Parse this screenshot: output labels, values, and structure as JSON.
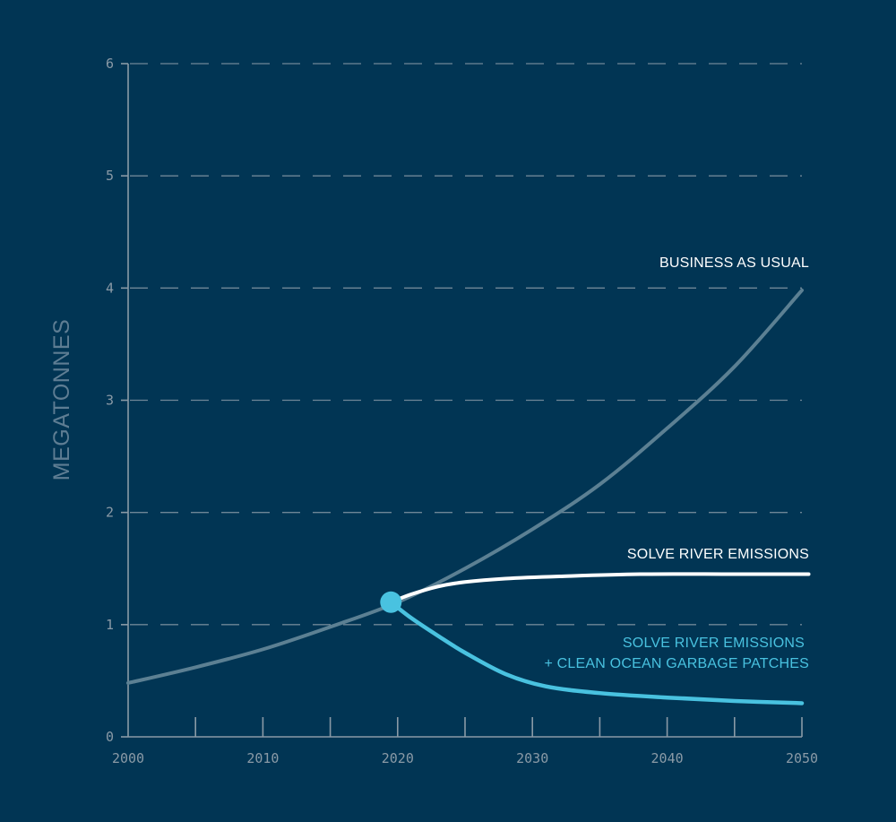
{
  "chart_data": {
    "type": "line",
    "title": "",
    "xlabel": "",
    "ylabel": "MEGATONNES",
    "xlim": [
      2000,
      2050
    ],
    "ylim": [
      0,
      6
    ],
    "x_ticks": [
      2000,
      2010,
      2020,
      2030,
      2040,
      2050
    ],
    "y_ticks": [
      0,
      1,
      2,
      3,
      4,
      5,
      6
    ],
    "grid": "horizontal-dashed",
    "colors": {
      "background": "#013554",
      "axis": "#8a9aa6",
      "grid": "#6f8697",
      "business_as_usual": "#5c8093",
      "solve_river": "#ffffff",
      "solve_river_clean": "#49c2e0",
      "marker": "#49c2e0"
    },
    "series": [
      {
        "name": "BUSINESS AS USUAL",
        "color": "#5c8093",
        "x": [
          2000,
          2005,
          2010,
          2015,
          2020,
          2025,
          2030,
          2035,
          2040,
          2045,
          2050
        ],
        "y": [
          0.48,
          0.62,
          0.78,
          0.98,
          1.2,
          1.5,
          1.85,
          2.25,
          2.75,
          3.3,
          3.98
        ]
      },
      {
        "name": "SOLVE RIVER EMISSIONS",
        "color": "#ffffff",
        "x": [
          2019.5,
          2021,
          2023,
          2025,
          2028,
          2032,
          2038,
          2045,
          2050.5
        ],
        "y": [
          1.2,
          1.27,
          1.34,
          1.38,
          1.41,
          1.43,
          1.45,
          1.45,
          1.45
        ]
      },
      {
        "name": "SOLVE RIVER EMISSIONS",
        "name_line2": "+ CLEAN OCEAN GARBAGE PATCHES",
        "color": "#49c2e0",
        "x": [
          2019.5,
          2021,
          2023,
          2025,
          2028,
          2031,
          2035,
          2040,
          2045,
          2050
        ],
        "y": [
          1.2,
          1.06,
          0.9,
          0.75,
          0.56,
          0.45,
          0.39,
          0.35,
          0.32,
          0.3
        ]
      }
    ],
    "annotations": [
      {
        "label": "intersection",
        "x": 2019.5,
        "y": 1.2
      }
    ]
  }
}
